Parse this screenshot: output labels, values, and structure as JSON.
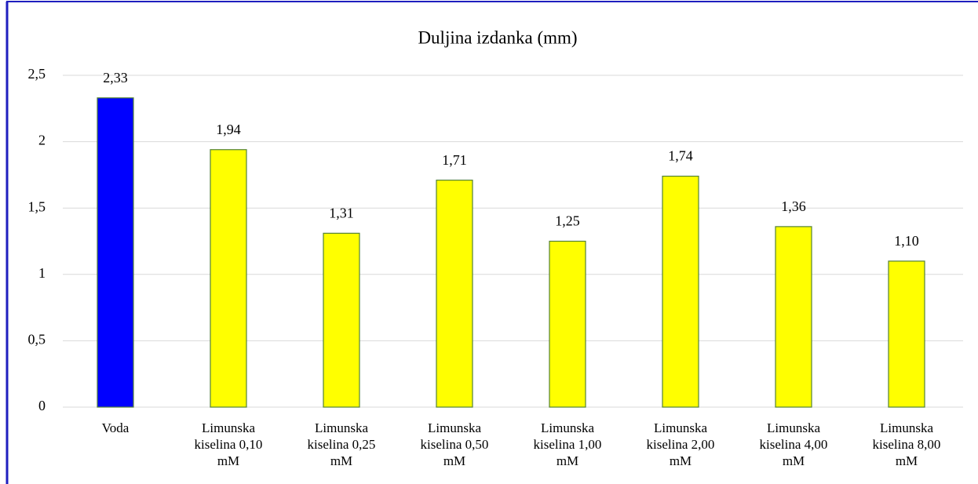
{
  "chart_data": {
    "type": "bar",
    "title": "Duljina izdanka (mm)",
    "categories": [
      "Voda",
      "Limunska kiselina 0,10 mM",
      "Limunska kiselina 0,25 mM",
      "Limunska kiselina 0,50 mM",
      "Limunska kiselina 1,00 mM",
      "Limunska kiselina 2,00 mM",
      "Limunska kiselina 4,00 mM",
      "Limunska kiselina 8,00 mM"
    ],
    "values": [
      2.33,
      1.94,
      1.31,
      1.71,
      1.25,
      1.74,
      1.36,
      1.1
    ],
    "value_labels": [
      "2,33",
      "1,94",
      "1,31",
      "1,71",
      "1,25",
      "1,74",
      "1,36",
      "1,10"
    ],
    "colors": [
      "#0000ff",
      "#ffff00",
      "#ffff00",
      "#ffff00",
      "#ffff00",
      "#ffff00",
      "#ffff00",
      "#ffff00"
    ],
    "edge_color": "#538135",
    "ylim": [
      0,
      2.5
    ],
    "yticks": [
      0,
      {
        "value": 0.5,
        "label": "0,5"
      },
      1,
      {
        "value": 1.5,
        "label": "1,5"
      },
      2,
      {
        "value": 2.5,
        "label": "2,5"
      }
    ],
    "grid": true
  }
}
